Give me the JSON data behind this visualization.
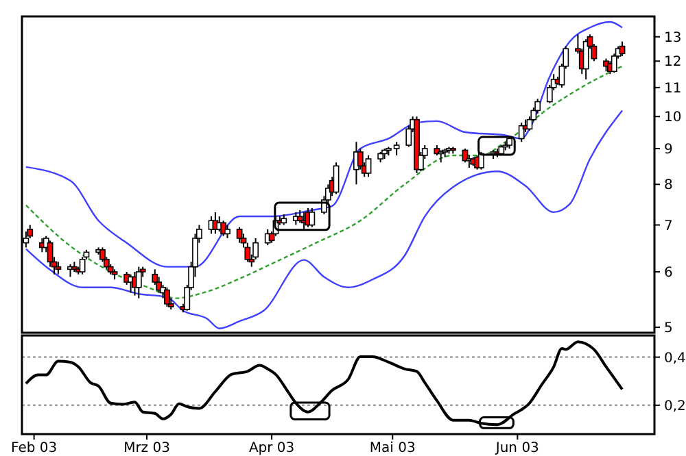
{
  "chart_data": [
    {
      "type": "candlestick",
      "log": true,
      "tick_labels": "y",
      "xlim": [
        "2003-01-29",
        "2003-07-05"
      ],
      "ylim": [
        4.91,
        13.9
      ],
      "yticks": [
        5,
        6,
        7,
        8,
        9,
        10,
        11,
        12,
        13
      ],
      "x": [
        "2003-01-30",
        "2003-01-31",
        "2003-02-03",
        "2003-02-04",
        "2003-02-05",
        "2003-02-06",
        "2003-02-07",
        "2003-02-10",
        "2003-02-11",
        "2003-02-12",
        "2003-02-13",
        "2003-02-14",
        "2003-02-17",
        "2003-02-18",
        "2003-02-19",
        "2003-02-20",
        "2003-02-21",
        "2003-02-24",
        "2003-02-25",
        "2003-02-26",
        "2003-02-27",
        "2003-02-28",
        "2003-03-03",
        "2003-03-04",
        "2003-03-05",
        "2003-03-06",
        "2003-03-07",
        "2003-03-10",
        "2003-03-11",
        "2003-03-12",
        "2003-03-13",
        "2003-03-14",
        "2003-03-17",
        "2003-03-18",
        "2003-03-19",
        "2003-03-20",
        "2003-03-21",
        "2003-03-24",
        "2003-03-25",
        "2003-03-26",
        "2003-03-27",
        "2003-03-28",
        "2003-03-31",
        "2003-04-01",
        "2003-04-02",
        "2003-04-03",
        "2003-04-04",
        "2003-04-07",
        "2003-04-08",
        "2003-04-09",
        "2003-04-10",
        "2003-04-11",
        "2003-04-14",
        "2003-04-15",
        "2003-04-16",
        "2003-04-17",
        "2003-04-22",
        "2003-04-23",
        "2003-04-24",
        "2003-04-25",
        "2003-04-28",
        "2003-04-29",
        "2003-04-30",
        "2003-05-02",
        "2003-05-05",
        "2003-05-06",
        "2003-05-07",
        "2003-05-08",
        "2003-05-09",
        "2003-05-12",
        "2003-05-13",
        "2003-05-14",
        "2003-05-15",
        "2003-05-16",
        "2003-05-19",
        "2003-05-20",
        "2003-05-21",
        "2003-05-22",
        "2003-05-23",
        "2003-05-26",
        "2003-05-27",
        "2003-05-28",
        "2003-05-29",
        "2003-05-30",
        "2003-06-02",
        "2003-06-03",
        "2003-06-04",
        "2003-06-05",
        "2003-06-06",
        "2003-06-09",
        "2003-06-10",
        "2003-06-11",
        "2003-06-12",
        "2003-06-13",
        "2003-06-16",
        "2003-06-17",
        "2003-06-18",
        "2003-06-19",
        "2003-06-20",
        "2003-06-23",
        "2003-06-24",
        "2003-06-25",
        "2003-06-26",
        "2003-06-27"
      ],
      "ohlc": [
        [
          6.6,
          6.85,
          6.5,
          6.7
        ],
        [
          6.9,
          7.0,
          6.7,
          6.75
        ],
        [
          6.6,
          6.7,
          6.4,
          6.5
        ],
        [
          6.5,
          6.75,
          6.4,
          6.7
        ],
        [
          6.6,
          6.65,
          6.1,
          6.2
        ],
        [
          6.2,
          6.3,
          5.95,
          6.1
        ],
        [
          6.1,
          6.2,
          5.95,
          6.05
        ],
        [
          6.05,
          6.15,
          5.9,
          6.1
        ],
        [
          6.1,
          6.2,
          6.0,
          6.05
        ],
        [
          6.05,
          6.1,
          5.95,
          6.0
        ],
        [
          6.0,
          6.3,
          5.95,
          6.25
        ],
        [
          6.3,
          6.45,
          6.25,
          6.4
        ],
        [
          6.4,
          6.5,
          6.35,
          6.45
        ],
        [
          6.45,
          6.5,
          6.2,
          6.25
        ],
        [
          6.25,
          6.3,
          6.05,
          6.1
        ],
        [
          6.1,
          6.15,
          5.95,
          6.0
        ],
        [
          6.0,
          6.05,
          5.85,
          5.95
        ],
        [
          5.95,
          6.0,
          5.75,
          5.8
        ],
        [
          5.8,
          5.95,
          5.6,
          5.9
        ],
        [
          5.9,
          6.0,
          5.55,
          5.7
        ],
        [
          5.7,
          6.1,
          5.5,
          6.0
        ],
        [
          6.05,
          6.1,
          5.9,
          6.0
        ],
        [
          5.95,
          6.05,
          5.75,
          5.8
        ],
        [
          5.8,
          5.9,
          5.6,
          5.65
        ],
        [
          5.6,
          5.75,
          5.5,
          5.7
        ],
        [
          5.65,
          5.7,
          5.35,
          5.4
        ],
        [
          5.4,
          5.5,
          5.3,
          5.35
        ],
        [
          5.35,
          5.4,
          5.25,
          5.3
        ],
        [
          5.3,
          5.75,
          5.28,
          5.7
        ],
        [
          5.7,
          6.2,
          5.65,
          6.1
        ],
        [
          6.1,
          6.8,
          5.9,
          6.7
        ],
        [
          6.7,
          7.0,
          6.6,
          6.9
        ],
        [
          6.9,
          7.2,
          6.8,
          7.1
        ],
        [
          7.1,
          7.3,
          6.8,
          6.9
        ],
        [
          6.9,
          7.2,
          6.85,
          7.05
        ],
        [
          7.05,
          7.1,
          6.75,
          6.8
        ],
        [
          6.8,
          7.0,
          6.7,
          6.9
        ],
        [
          6.9,
          6.95,
          6.6,
          6.7
        ],
        [
          6.7,
          6.8,
          6.5,
          6.6
        ],
        [
          6.5,
          6.6,
          6.2,
          6.25
        ],
        [
          6.25,
          6.35,
          6.1,
          6.2
        ],
        [
          6.3,
          6.7,
          6.25,
          6.6
        ],
        [
          6.6,
          6.9,
          6.55,
          6.8
        ],
        [
          6.8,
          6.85,
          6.6,
          6.65
        ],
        [
          6.8,
          7.2,
          6.75,
          7.1
        ],
        [
          7.1,
          7.2,
          7.0,
          7.05
        ],
        [
          7.05,
          7.25,
          7.0,
          7.15
        ],
        [
          7.1,
          7.3,
          7.0,
          7.2
        ],
        [
          7.2,
          7.35,
          7.05,
          7.1
        ],
        [
          7.1,
          7.3,
          6.9,
          7.05
        ],
        [
          7.3,
          7.4,
          6.95,
          7.0
        ],
        [
          7.0,
          7.4,
          6.95,
          7.3
        ],
        [
          7.3,
          7.7,
          7.25,
          7.6
        ],
        [
          7.6,
          8.0,
          7.5,
          7.9
        ],
        [
          8.1,
          8.2,
          7.7,
          7.8
        ],
        [
          7.8,
          8.6,
          7.75,
          8.5
        ],
        [
          8.4,
          9.2,
          8.0,
          8.9
        ],
        [
          8.9,
          9.0,
          8.4,
          8.5
        ],
        [
          8.5,
          8.6,
          8.2,
          8.3
        ],
        [
          8.3,
          8.8,
          8.2,
          8.7
        ],
        [
          8.7,
          8.9,
          8.6,
          8.85
        ],
        [
          8.85,
          9.0,
          8.7,
          8.95
        ],
        [
          8.95,
          9.05,
          8.8,
          9.0
        ],
        [
          9.0,
          9.2,
          8.8,
          9.1
        ],
        [
          9.1,
          9.7,
          9.05,
          9.6
        ],
        [
          9.6,
          10.0,
          9.5,
          9.9
        ],
        [
          9.9,
          10.0,
          8.3,
          8.4
        ],
        [
          8.4,
          8.9,
          8.35,
          8.8
        ],
        [
          8.8,
          9.1,
          8.7,
          9.0
        ],
        [
          9.0,
          9.1,
          8.8,
          8.85
        ],
        [
          8.85,
          8.95,
          8.6,
          8.9
        ],
        [
          8.9,
          9.0,
          8.75,
          8.95
        ],
        [
          8.95,
          9.05,
          8.85,
          9.0
        ],
        [
          9.0,
          9.05,
          8.85,
          8.95
        ],
        [
          8.95,
          9.0,
          8.6,
          8.65
        ],
        [
          8.65,
          8.8,
          8.45,
          8.7
        ],
        [
          8.7,
          8.75,
          8.5,
          8.55
        ],
        [
          8.75,
          8.8,
          8.4,
          8.45
        ],
        [
          8.45,
          8.9,
          8.4,
          8.85
        ],
        [
          8.85,
          8.95,
          8.7,
          8.9
        ],
        [
          8.9,
          9.0,
          8.75,
          8.85
        ],
        [
          8.85,
          9.1,
          8.8,
          9.05
        ],
        [
          9.05,
          9.2,
          8.95,
          9.1
        ],
        [
          9.1,
          9.35,
          9.0,
          9.3
        ],
        [
          9.3,
          9.8,
          9.2,
          9.7
        ],
        [
          9.7,
          9.9,
          9.5,
          9.6
        ],
        [
          9.6,
          10.0,
          9.55,
          9.9
        ],
        [
          9.9,
          10.3,
          9.85,
          10.2
        ],
        [
          10.2,
          10.6,
          10.1,
          10.5
        ],
        [
          10.5,
          11.1,
          10.45,
          11.0
        ],
        [
          11.0,
          11.5,
          10.9,
          11.3
        ],
        [
          11.3,
          11.4,
          11.1,
          11.15
        ],
        [
          11.1,
          11.9,
          11.0,
          11.8
        ],
        [
          11.8,
          12.6,
          11.7,
          12.5
        ],
        [
          12.5,
          13.1,
          12.3,
          12.4
        ],
        [
          12.4,
          12.5,
          11.5,
          11.7
        ],
        [
          11.7,
          12.9,
          11.3,
          12.8
        ],
        [
          13.0,
          13.1,
          12.5,
          12.6
        ],
        [
          12.6,
          12.7,
          12.0,
          12.1
        ],
        [
          12.0,
          12.1,
          11.6,
          11.8
        ],
        [
          11.9,
          12.0,
          11.5,
          11.6
        ],
        [
          11.6,
          12.3,
          11.55,
          12.2
        ],
        [
          12.2,
          12.6,
          12.1,
          12.5
        ],
        [
          12.6,
          12.8,
          12.2,
          12.3
        ]
      ],
      "colors": [
        "#ffffff",
        "#ff0000",
        "#ff0000",
        "#ffffff",
        "#ff0000",
        "#ff0000",
        "#ff0000",
        "#ffffff",
        "#ff0000",
        "#ff0000",
        "#ffffff",
        "#ffffff",
        "#ffffff",
        "#ff0000",
        "#ff0000",
        "#ff0000",
        "#ff0000",
        "#ff0000",
        "#ffffff",
        "#ff0000",
        "#ffffff",
        "#ff0000",
        "#ff0000",
        "#ff0000",
        "#ffffff",
        "#ff0000",
        "#ff0000",
        "#ff0000",
        "#ffffff",
        "#ffffff",
        "#ffffff",
        "#ffffff",
        "#ffffff",
        "#ff0000",
        "#ffffff",
        "#ff0000",
        "#ffffff",
        "#ff0000",
        "#ff0000",
        "#ff0000",
        "#ff0000",
        "#ffffff",
        "#ffffff",
        "#ff0000",
        "#ffffff",
        "#ff0000",
        "#ffffff",
        "#ffffff",
        "#ff0000",
        "#ff0000",
        "#ff0000",
        "#ffffff",
        "#ffffff",
        "#ffffff",
        "#ff0000",
        "#ffffff",
        "#ffffff",
        "#ff0000",
        "#ff0000",
        "#ffffff",
        "#ffffff",
        "#ffffff",
        "#ffffff",
        "#ffffff",
        "#ffffff",
        "#ffffff",
        "#ff0000",
        "#ffffff",
        "#ffffff",
        "#ff0000",
        "#ffffff",
        "#ffffff",
        "#ffffff",
        "#ff0000",
        "#ff0000",
        "#ffffff",
        "#ff0000",
        "#ff0000",
        "#ffffff",
        "#ffffff",
        "#ff0000",
        "#ffffff",
        "#ffffff",
        "#ffffff",
        "#ffffff",
        "#ff0000",
        "#ffffff",
        "#ffffff",
        "#ffffff",
        "#ffffff",
        "#ffffff",
        "#ff0000",
        "#ffffff",
        "#ffffff",
        "#ff0000",
        "#ff0000",
        "#ffffff",
        "#ff0000",
        "#ff0000",
        "#ff0000",
        "#ff0000",
        "#ffffff",
        "#ffffff",
        "#ff0000"
      ],
      "series": [
        {
          "type": "line",
          "color": "#4040ff",
          "x": [
            "2003-01-30",
            "2003-02-10",
            "2003-02-17",
            "2003-02-24",
            "2003-03-06",
            "2003-03-13",
            "2003-03-24",
            "2003-04-01",
            "2003-04-11",
            "2003-04-16",
            "2003-04-23",
            "2003-04-30",
            "2003-05-07",
            "2003-05-12",
            "2003-05-19",
            "2003-05-29",
            "2003-06-02",
            "2003-06-04",
            "2003-06-09",
            "2003-06-14",
            "2003-06-19",
            "2003-06-24",
            "2003-06-27"
          ],
          "values": [
            8.47,
            8.1,
            7.1,
            6.6,
            6.1,
            6.1,
            7.2,
            7.2,
            7.35,
            7.45,
            9.0,
            9.3,
            9.8,
            9.85,
            9.5,
            9.4,
            9.3,
            9.6,
            11.4,
            12.8,
            13.4,
            13.65,
            13.4
          ]
        },
        {
          "type": "line",
          "color": "#30a030",
          "line_style": "dashed",
          "x": [
            "2003-01-30",
            "2003-02-09",
            "2003-02-20",
            "2003-03-03",
            "2003-03-08",
            "2003-03-15",
            "2003-03-25",
            "2003-04-02",
            "2003-04-12",
            "2003-04-23",
            "2003-05-04",
            "2003-05-16",
            "2003-05-23",
            "2003-05-29",
            "2003-06-09",
            "2003-06-18",
            "2003-06-27"
          ],
          "values": [
            7.47,
            6.6,
            6.0,
            5.65,
            5.5,
            5.6,
            5.9,
            6.2,
            6.6,
            7.1,
            8.0,
            8.8,
            8.8,
            9.2,
            10.3,
            11.1,
            11.8
          ]
        },
        {
          "type": "line",
          "color": "#4040ff",
          "x": [
            "2003-01-30",
            "2003-02-05",
            "2003-02-13",
            "2003-02-20",
            "2003-02-27",
            "2003-03-06",
            "2003-03-10",
            "2003-03-16",
            "2003-03-19",
            "2003-03-24",
            "2003-03-30",
            "2003-04-09",
            "2003-04-14",
            "2003-04-20",
            "2003-04-26",
            "2003-05-04",
            "2003-05-09",
            "2003-05-16",
            "2003-05-27",
            "2003-06-03",
            "2003-06-10",
            "2003-06-14",
            "2003-06-19",
            "2003-06-27"
          ],
          "values": [
            6.47,
            6.04,
            5.7,
            5.7,
            5.58,
            5.52,
            5.28,
            5.14,
            4.98,
            5.1,
            5.28,
            6.24,
            5.9,
            5.7,
            5.85,
            6.33,
            7.2,
            7.93,
            8.35,
            7.96,
            7.3,
            7.5,
            8.7,
            10.2
          ]
        }
      ]
    },
    {
      "type": "line",
      "grid": "y",
      "xlim": [
        "2003-01-29",
        "2003-07-05"
      ],
      "xticks": [
        {
          "value": "2003-02-01",
          "label": "Feb 03"
        },
        {
          "value": "2003-03-01",
          "label": "Mrz 03"
        },
        {
          "value": "2003-04-01",
          "label": "Apr 03"
        },
        {
          "value": "2003-05-01",
          "label": "Mai 03"
        },
        {
          "value": "2003-06-01",
          "label": "Jun 03"
        }
      ],
      "ylim": [
        0.08,
        0.49
      ],
      "yticks": [
        {
          "value": 0.2,
          "label": "0,2"
        },
        {
          "value": 0.4,
          "label": "0,4"
        }
      ],
      "series": [
        {
          "color": "#000000",
          "x": [
            "2003-01-30",
            "2003-02-02",
            "2003-02-04",
            "2003-02-07",
            "2003-02-10",
            "2003-02-12",
            "2003-02-15",
            "2003-02-17",
            "2003-02-20",
            "2003-02-23",
            "2003-02-26",
            "2003-02-28",
            "2003-03-03",
            "2003-03-05",
            "2003-03-07",
            "2003-03-09",
            "2003-03-11",
            "2003-03-14",
            "2003-03-18",
            "2003-03-22",
            "2003-03-26",
            "2003-03-29",
            "2003-03-31",
            "2003-04-02",
            "2003-04-05",
            "2003-04-07",
            "2003-04-10",
            "2003-04-13",
            "2003-04-16",
            "2003-04-20",
            "2003-04-23",
            "2003-04-26",
            "2003-04-30",
            "2003-05-04",
            "2003-05-07",
            "2003-05-09",
            "2003-05-12",
            "2003-05-16",
            "2003-05-20",
            "2003-05-23",
            "2003-05-27",
            "2003-05-31",
            "2003-06-04",
            "2003-06-07",
            "2003-06-10",
            "2003-06-12",
            "2003-06-13",
            "2003-06-16",
            "2003-06-20",
            "2003-06-23",
            "2003-06-25",
            "2003-06-27"
          ],
          "values": [
            0.29,
            0.326,
            0.326,
            0.383,
            0.379,
            0.36,
            0.294,
            0.28,
            0.209,
            0.204,
            0.213,
            0.172,
            0.166,
            0.143,
            0.162,
            0.206,
            0.194,
            0.187,
            0.257,
            0.328,
            0.341,
            0.366,
            0.351,
            0.328,
            0.257,
            0.209,
            0.172,
            0.209,
            0.262,
            0.308,
            0.402,
            0.402,
            0.379,
            0.351,
            0.341,
            0.294,
            0.219,
            0.138,
            0.138,
            0.125,
            0.119,
            0.162,
            0.209,
            0.285,
            0.36,
            0.436,
            0.432,
            0.464,
            0.432,
            0.36,
            0.313,
            0.266
          ]
        }
      ]
    }
  ]
}
